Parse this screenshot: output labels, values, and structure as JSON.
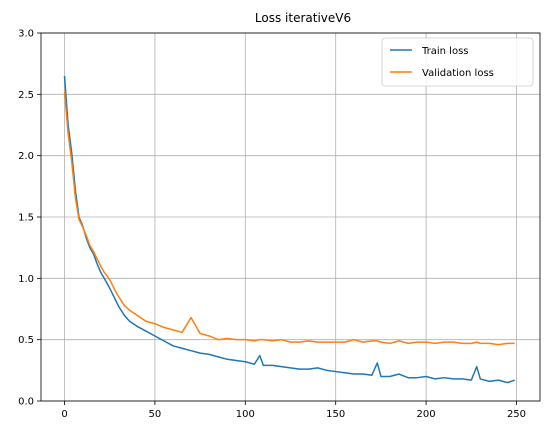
{
  "chart_data": {
    "type": "line",
    "title": "Loss iterativeV6",
    "xlabel": "",
    "ylabel": "",
    "xlim": [
      -13,
      263
    ],
    "ylim": [
      0,
      3.0
    ],
    "xticks": [
      0,
      50,
      100,
      150,
      200,
      250
    ],
    "yticks": [
      0.0,
      0.5,
      1.0,
      1.5,
      2.0,
      2.5,
      3.0
    ],
    "xtick_labels": [
      "0",
      "50",
      "100",
      "150",
      "200",
      "250"
    ],
    "ytick_labels": [
      "0.0",
      "0.5",
      "1.0",
      "1.5",
      "2.0",
      "2.5",
      "3.0"
    ],
    "grid": true,
    "legend_position": "top-right",
    "colors": {
      "train": "#1f77b4",
      "validation": "#ff7f0e",
      "grid": "#b0b0b0"
    },
    "x": [
      0,
      2,
      4,
      6,
      8,
      10,
      12,
      14,
      16,
      18,
      20,
      22,
      25,
      28,
      30,
      33,
      36,
      40,
      45,
      50,
      55,
      60,
      65,
      70,
      75,
      80,
      85,
      90,
      95,
      100,
      105,
      108,
      110,
      115,
      120,
      125,
      130,
      135,
      140,
      145,
      150,
      155,
      160,
      165,
      170,
      173,
      175,
      180,
      185,
      190,
      195,
      200,
      205,
      210,
      215,
      220,
      225,
      228,
      230,
      235,
      240,
      245,
      249
    ],
    "series": [
      {
        "name": "Train loss",
        "values": [
          2.65,
          2.25,
          2.02,
          1.72,
          1.5,
          1.43,
          1.33,
          1.25,
          1.2,
          1.12,
          1.05,
          1.0,
          0.92,
          0.83,
          0.77,
          0.7,
          0.65,
          0.61,
          0.57,
          0.53,
          0.49,
          0.45,
          0.43,
          0.41,
          0.39,
          0.38,
          0.36,
          0.34,
          0.33,
          0.32,
          0.3,
          0.37,
          0.29,
          0.29,
          0.28,
          0.27,
          0.26,
          0.26,
          0.27,
          0.25,
          0.24,
          0.23,
          0.22,
          0.22,
          0.21,
          0.31,
          0.2,
          0.2,
          0.22,
          0.19,
          0.19,
          0.2,
          0.18,
          0.19,
          0.18,
          0.18,
          0.17,
          0.28,
          0.18,
          0.16,
          0.17,
          0.15,
          0.17
        ]
      },
      {
        "name": "Validation loss",
        "values": [
          2.52,
          2.18,
          1.95,
          1.66,
          1.48,
          1.42,
          1.35,
          1.27,
          1.22,
          1.16,
          1.1,
          1.05,
          0.99,
          0.9,
          0.85,
          0.78,
          0.74,
          0.7,
          0.65,
          0.63,
          0.6,
          0.58,
          0.56,
          0.68,
          0.55,
          0.53,
          0.5,
          0.51,
          0.5,
          0.5,
          0.49,
          0.5,
          0.5,
          0.49,
          0.5,
          0.48,
          0.48,
          0.49,
          0.48,
          0.48,
          0.48,
          0.48,
          0.5,
          0.48,
          0.49,
          0.49,
          0.48,
          0.47,
          0.49,
          0.47,
          0.48,
          0.48,
          0.47,
          0.48,
          0.48,
          0.47,
          0.47,
          0.48,
          0.47,
          0.47,
          0.46,
          0.47,
          0.47
        ]
      }
    ]
  }
}
